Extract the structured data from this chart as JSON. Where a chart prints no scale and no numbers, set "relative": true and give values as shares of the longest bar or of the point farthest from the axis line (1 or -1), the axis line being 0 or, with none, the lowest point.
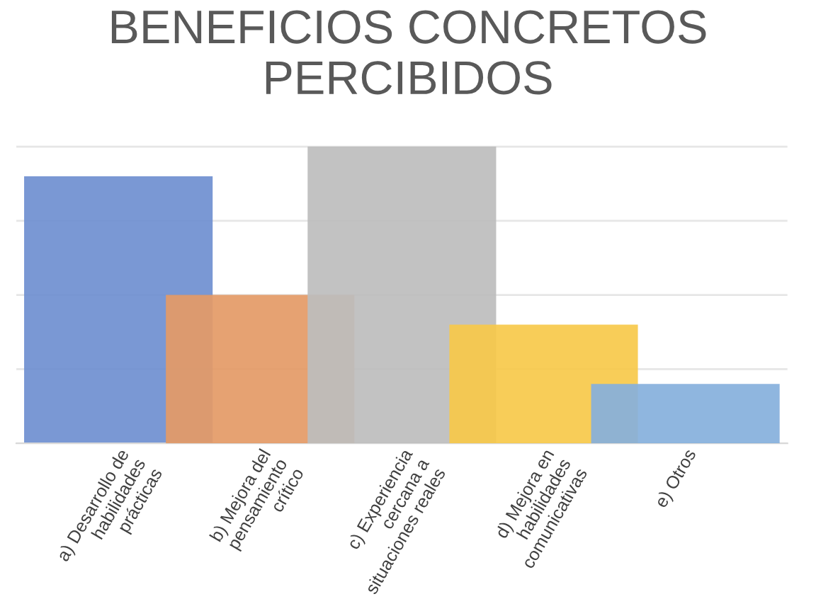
{
  "chart_data": {
    "type": "bar",
    "title": "BENEFICIOS CONCRETOS\nPERCIBIDOS",
    "relative": true,
    "grid": "y",
    "categories": [
      "a) Desarrollo de\nhabilidades\nprácticas",
      "b) Mejora del\npensamiento\ncrítico",
      "c) Experiencia\ncercana a\nsituaciones reales",
      "d) Mejora en\nhabilidades\ncomunicativas",
      "e) Otros"
    ],
    "values": [
      0.9,
      0.5,
      1,
      0.4,
      0.2
    ],
    "colors": [
      "#6f8fd0",
      "#e49a66",
      "#bdbdbd",
      "#f7c94a",
      "#86b0dc"
    ]
  }
}
